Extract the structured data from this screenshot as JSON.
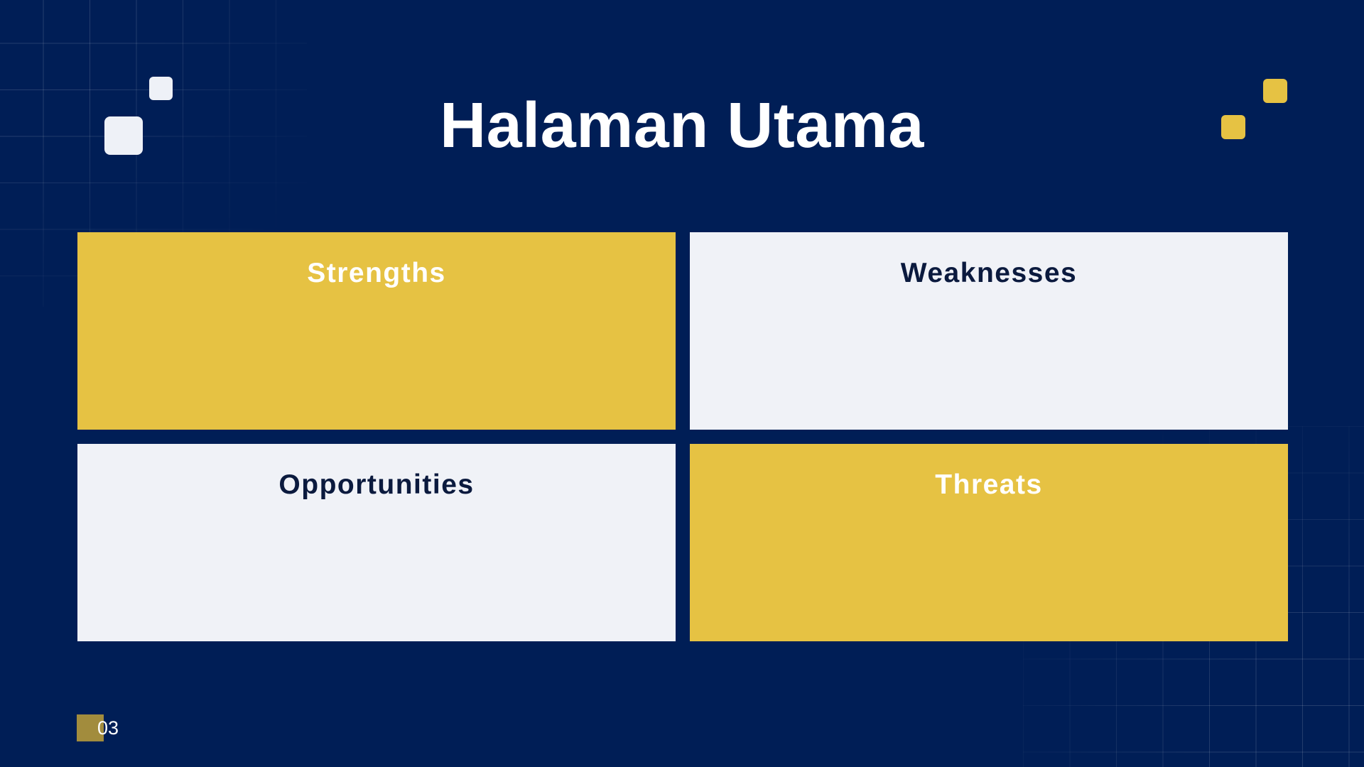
{
  "slide": {
    "title": "Halaman Utama",
    "page_number": "03"
  },
  "swot": [
    {
      "label": "Strengths"
    },
    {
      "label": "Weaknesses"
    },
    {
      "label": "Opportunities"
    },
    {
      "label": "Threats"
    }
  ],
  "colors": {
    "background": "#001e56",
    "accent_yellow": "#e6c243",
    "light": "#f0f2f7",
    "dark_text": "#0b1a3e"
  }
}
